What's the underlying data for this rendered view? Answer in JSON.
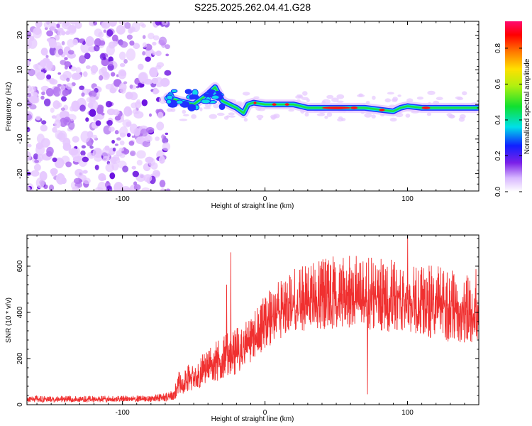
{
  "title": "S225.2025.262.04.41.G28",
  "colors": {
    "snr_line": "#f03030",
    "blob_light": "#e6c8ff",
    "blob_mid": "#b070f0",
    "blob_dark": "#6a10e0",
    "track_blue": "#2030ff",
    "track_cyan": "#10d8e8",
    "track_green": "#20e040",
    "track_red": "#ff1010"
  },
  "chart_data": [
    {
      "type": "heatmap",
      "name": "spectrogram",
      "xlabel": "Height of straight line (km)",
      "ylabel": "Frequency (Hz)",
      "xlim": [
        -167,
        150
      ],
      "ylim": [
        -25,
        24
      ],
      "xticks": [
        -100,
        0,
        100
      ],
      "yticks": [
        20,
        10,
        0,
        -10,
        -20
      ],
      "noise_region_x": [
        -167,
        -68
      ],
      "track": [
        [
          -68,
          2
        ],
        [
          -60,
          1
        ],
        [
          -50,
          0
        ],
        [
          -40,
          3
        ],
        [
          -35,
          5
        ],
        [
          -30,
          1
        ],
        [
          -25,
          0
        ],
        [
          -20,
          -1
        ],
        [
          -15,
          -2.5
        ],
        [
          -12,
          0
        ],
        [
          -8,
          0.5
        ],
        [
          0,
          0
        ],
        [
          20,
          0
        ],
        [
          30,
          -1
        ],
        [
          40,
          -1
        ],
        [
          50,
          -1
        ],
        [
          60,
          -1
        ],
        [
          70,
          -1
        ],
        [
          80,
          -1.5
        ],
        [
          90,
          -2
        ],
        [
          95,
          -1
        ],
        [
          100,
          -0.5
        ],
        [
          110,
          -1
        ],
        [
          120,
          -1
        ],
        [
          130,
          -1
        ],
        [
          140,
          -1
        ],
        [
          150,
          -1
        ]
      ],
      "colorbar": {
        "label": "Normalized spectral amplitude",
        "ticks": [
          0.0,
          0.2,
          0.4,
          0.6,
          0.8
        ],
        "range": [
          0,
          0.95
        ]
      }
    },
    {
      "type": "line",
      "name": "snr",
      "xlabel": "Height of straight line (km)",
      "ylabel": "SNR (10 * v/v)",
      "xlim": [
        -167,
        150
      ],
      "ylim": [
        0,
        735
      ],
      "xticks": [
        -100,
        0,
        100
      ],
      "yticks": [
        0,
        200,
        400,
        600
      ],
      "envelope": {
        "x": [
          -167,
          -120,
          -80,
          -65,
          -60,
          -50,
          -40,
          -30,
          -20,
          -10,
          0,
          10,
          20,
          30,
          40,
          60,
          80,
          100,
          120,
          140,
          150
        ],
        "base": [
          10,
          10,
          12,
          15,
          40,
          60,
          90,
          110,
          130,
          180,
          240,
          280,
          320,
          320,
          320,
          330,
          320,
          300,
          280,
          260,
          250
        ],
        "top": [
          40,
          38,
          40,
          60,
          150,
          200,
          240,
          300,
          330,
          380,
          480,
          540,
          600,
          620,
          640,
          650,
          640,
          620,
          600,
          590,
          590
        ]
      },
      "spikes": [
        {
          "x": -24,
          "y": 660
        },
        {
          "x": -27,
          "y": 520
        },
        {
          "x": 100,
          "y": 735
        },
        {
          "x": 72,
          "y": 45
        }
      ]
    }
  ]
}
